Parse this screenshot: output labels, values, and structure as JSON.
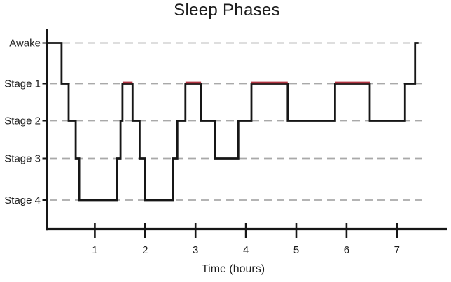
{
  "chart_data": {
    "type": "step",
    "title": "Sleep Phases",
    "xlabel": "Time (hours)",
    "x_ticks": [
      "1",
      "2",
      "3",
      "4",
      "5",
      "6",
      "7"
    ],
    "xlim": [
      0,
      8
    ],
    "y_categories": [
      "Awake",
      "Stage 1",
      "Stage 2",
      "Stage 3",
      "Stage 4"
    ],
    "grid": "horizontal-dashed",
    "legend": "none",
    "colors": {
      "line": "#161616",
      "rem_highlight": "#b43543",
      "gridline": "#a9a9a9",
      "text": "#1c1c1c"
    },
    "rem_note": "segments flagged rem are overlaid in red at the Stage 1 level",
    "segments": [
      {
        "start_hour": 0.05,
        "end_hour": 0.34,
        "stage": "Awake",
        "rem": false
      },
      {
        "start_hour": 0.34,
        "end_hour": 0.48,
        "stage": "Stage 1",
        "rem": false
      },
      {
        "start_hour": 0.48,
        "end_hour": 0.62,
        "stage": "Stage 2",
        "rem": false
      },
      {
        "start_hour": 0.62,
        "end_hour": 0.69,
        "stage": "Stage 3",
        "rem": false
      },
      {
        "start_hour": 0.69,
        "end_hour": 1.44,
        "stage": "Stage 4",
        "rem": false
      },
      {
        "start_hour": 1.44,
        "end_hour": 1.51,
        "stage": "Stage 3",
        "rem": false
      },
      {
        "start_hour": 1.51,
        "end_hour": 1.55,
        "stage": "Stage 2",
        "rem": false
      },
      {
        "start_hour": 1.55,
        "end_hour": 1.75,
        "stage": "Stage 1",
        "rem": true
      },
      {
        "start_hour": 1.75,
        "end_hour": 1.89,
        "stage": "Stage 2",
        "rem": false
      },
      {
        "start_hour": 1.89,
        "end_hour": 2.0,
        "stage": "Stage 3",
        "rem": false
      },
      {
        "start_hour": 2.0,
        "end_hour": 2.55,
        "stage": "Stage 4",
        "rem": false
      },
      {
        "start_hour": 2.55,
        "end_hour": 2.64,
        "stage": "Stage 3",
        "rem": false
      },
      {
        "start_hour": 2.64,
        "end_hour": 2.8,
        "stage": "Stage 2",
        "rem": false
      },
      {
        "start_hour": 2.8,
        "end_hour": 3.11,
        "stage": "Stage 1",
        "rem": true
      },
      {
        "start_hour": 3.11,
        "end_hour": 3.39,
        "stage": "Stage 2",
        "rem": false
      },
      {
        "start_hour": 3.39,
        "end_hour": 3.85,
        "stage": "Stage 3",
        "rem": false
      },
      {
        "start_hour": 3.85,
        "end_hour": 4.11,
        "stage": "Stage 2",
        "rem": false
      },
      {
        "start_hour": 4.11,
        "end_hour": 4.83,
        "stage": "Stage 1",
        "rem": true
      },
      {
        "start_hour": 4.83,
        "end_hour": 5.77,
        "stage": "Stage 2",
        "rem": false
      },
      {
        "start_hour": 5.77,
        "end_hour": 6.46,
        "stage": "Stage 1",
        "rem": true
      },
      {
        "start_hour": 6.46,
        "end_hour": 7.16,
        "stage": "Stage 2",
        "rem": false
      },
      {
        "start_hour": 7.16,
        "end_hour": 7.36,
        "stage": "Stage 1",
        "rem": false
      },
      {
        "start_hour": 7.36,
        "end_hour": 7.43,
        "stage": "Awake",
        "rem": false
      }
    ]
  }
}
